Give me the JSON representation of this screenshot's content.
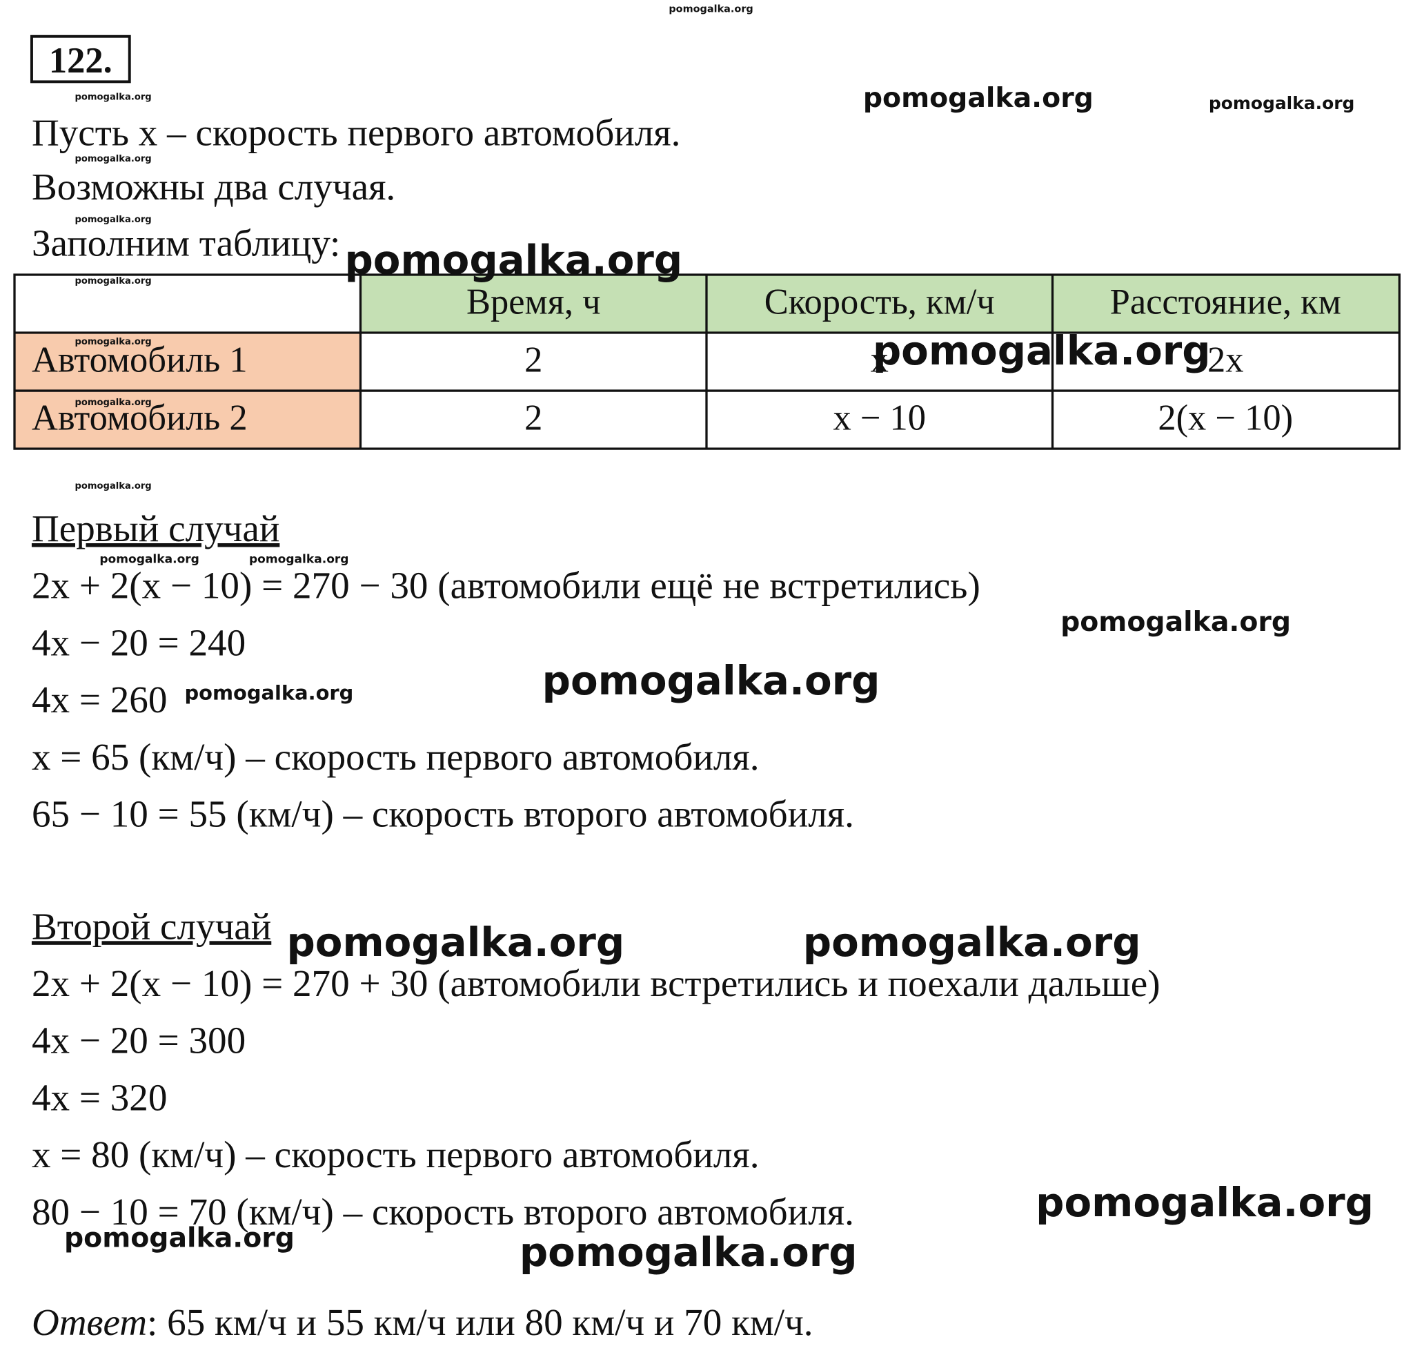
{
  "problem_number": "122.",
  "intro": [
    "Пусть x – скорость первого автомобиля.",
    "Возможны два случая.",
    "Заполним таблицу:"
  ],
  "table": {
    "header": [
      "Время, ч",
      "Скорость, км/ч",
      "Расстояние, км"
    ],
    "rows": [
      [
        "Автомобиль 1",
        "2",
        "x",
        "2x"
      ],
      [
        "Автомобиль 2",
        "2",
        "x − 10",
        "2(x − 10)"
      ]
    ]
  },
  "cases": [
    {
      "title": "Первый случай",
      "lines": [
        "2x + 2(x − 10) = 270 − 30 (автомобили ещё не встретились)",
        "4x − 20 = 240",
        "4x = 260",
        "x = 65 (км/ч) – скорость первого автомобиля.",
        "65 − 10 = 55 (км/ч) – скорость второго автомобиля."
      ]
    },
    {
      "title": "Второй случай",
      "lines": [
        "2x + 2(x − 10) = 270 + 30 (автомобили встретились и поехали дальше)",
        "4x − 20 = 300",
        "4x = 320",
        "x = 80 (км/ч) – скорость первого автомобиля.",
        "80 − 10 = 70 (км/ч) – скорость второго автомобиля."
      ]
    }
  ],
  "answer": {
    "label": "Ответ",
    "text": ": 65 км/ч и 55 км/ч или 80 км/ч и 70 км/ч."
  },
  "watermarks": [
    "pomogalka.org",
    "pomogalka.org",
    "pomogalka.org",
    "pomogalka.org",
    "pomogalka.org",
    "pomogalka.org",
    "pomogalka.org",
    "pomogalka.org",
    "pomogalka.org",
    "pomogalka.org",
    "pomogalka.org",
    "pomogalka.org",
    "pomogalka.org",
    "pomogalka.org",
    "pomogalka.org",
    "pomogalka.org",
    "pomogalka.org",
    "pomogalka.org",
    "pomogalka.org",
    "pomogalka.org",
    "pomogalka.org",
    "pomogalka.org"
  ]
}
